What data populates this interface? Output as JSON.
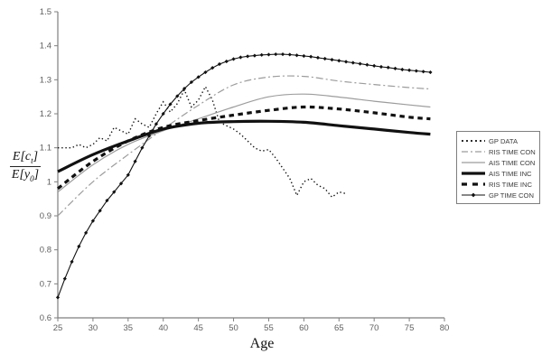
{
  "chart_data": {
    "type": "line",
    "title": "",
    "xlabel": "Age",
    "ylabel": {
      "num_main": "E[c",
      "num_sub": "t",
      "num_close": "]",
      "den_main": "E[y",
      "den_sub": "0",
      "den_close": "]"
    },
    "xlim": [
      25,
      80
    ],
    "ylim": [
      0.6,
      1.5
    ],
    "grid": false,
    "legend_position": "right-middle",
    "xticks": [
      "25",
      "30",
      "35",
      "40",
      "45",
      "50",
      "55",
      "60",
      "65",
      "70",
      "75",
      "80"
    ],
    "yticks": [
      "0.6",
      "0.7",
      "0.8",
      "0.9",
      "1",
      "1.1",
      "1.2",
      "1.3",
      "1.4",
      "1.5"
    ],
    "axis_color": "#7f7f7f",
    "tick_label_color": "#5f5f5f",
    "gray_series_color": "#9c9c9c",
    "black_series_color": "#111111",
    "series": [
      {
        "name": "GP DATA",
        "style": "dotted",
        "color": "#111111",
        "width": 1.4,
        "smooth": false,
        "marker": "none",
        "x": [
          25,
          26,
          27,
          28,
          29,
          30,
          31,
          32,
          33,
          34,
          35,
          36,
          37,
          38,
          39,
          40,
          41,
          42,
          43,
          44,
          45,
          46,
          47,
          48,
          49,
          50,
          51,
          52,
          53,
          54,
          55,
          56,
          57,
          58,
          59,
          60,
          61,
          62,
          63,
          64,
          65,
          66
        ],
        "y": [
          1.1,
          1.1,
          1.1,
          1.11,
          1.1,
          1.11,
          1.13,
          1.12,
          1.16,
          1.15,
          1.14,
          1.185,
          1.17,
          1.16,
          1.2,
          1.235,
          1.205,
          1.23,
          1.27,
          1.22,
          1.24,
          1.28,
          1.24,
          1.175,
          1.165,
          1.155,
          1.14,
          1.12,
          1.1,
          1.09,
          1.095,
          1.07,
          1.04,
          1.01,
          0.96,
          1.0,
          1.01,
          0.99,
          0.98,
          0.955,
          0.97,
          0.965
        ]
      },
      {
        "name": "RIS TIME CON",
        "style": "dashdot",
        "color": "#9c9c9c",
        "width": 1.2,
        "smooth": true,
        "marker": "none",
        "x": [
          25,
          30,
          35,
          40,
          45,
          50,
          55,
          60,
          65,
          70,
          75,
          78
        ],
        "y": [
          0.9,
          1.0,
          1.08,
          1.155,
          1.225,
          1.285,
          1.308,
          1.31,
          1.296,
          1.286,
          1.277,
          1.273
        ]
      },
      {
        "name": "AIS TIME CON",
        "style": "solid",
        "color": "#9c9c9c",
        "width": 1.2,
        "smooth": true,
        "marker": "none",
        "x": [
          25,
          30,
          35,
          40,
          45,
          50,
          55,
          60,
          65,
          70,
          75,
          78
        ],
        "y": [
          0.97,
          1.05,
          1.11,
          1.15,
          1.185,
          1.22,
          1.25,
          1.258,
          1.249,
          1.237,
          1.226,
          1.22
        ]
      },
      {
        "name": "AIS TIME INC",
        "style": "solid",
        "color": "#111111",
        "width": 3.2,
        "smooth": true,
        "marker": "none",
        "x": [
          25,
          30,
          35,
          40,
          45,
          50,
          55,
          60,
          65,
          70,
          75,
          78
        ],
        "y": [
          1.03,
          1.08,
          1.12,
          1.155,
          1.172,
          1.177,
          1.178,
          1.175,
          1.165,
          1.155,
          1.145,
          1.14
        ]
      },
      {
        "name": "RIS TIME INC",
        "style": "dashed",
        "color": "#111111",
        "width": 3.2,
        "smooth": true,
        "marker": "none",
        "x": [
          25,
          30,
          35,
          40,
          45,
          50,
          55,
          60,
          65,
          70,
          75,
          78
        ],
        "y": [
          0.98,
          1.06,
          1.12,
          1.16,
          1.18,
          1.196,
          1.21,
          1.22,
          1.214,
          1.203,
          1.19,
          1.185
        ]
      },
      {
        "name": "GP TIME CON",
        "style": "solid",
        "color": "#111111",
        "width": 1.1,
        "smooth": false,
        "marker": "diamond",
        "x": [
          25,
          26,
          27,
          28,
          29,
          30,
          31,
          32,
          33,
          34,
          35,
          36,
          37,
          38,
          39,
          40,
          41,
          42,
          43,
          44,
          45,
          46,
          47,
          48,
          49,
          50,
          51,
          52,
          53,
          54,
          55,
          56,
          57,
          58,
          59,
          60,
          61,
          62,
          63,
          64,
          65,
          66,
          67,
          68,
          69,
          70,
          71,
          72,
          73,
          74,
          75,
          76,
          77,
          78
        ],
        "y": [
          0.66,
          0.715,
          0.765,
          0.81,
          0.85,
          0.885,
          0.915,
          0.945,
          0.97,
          0.995,
          1.02,
          1.06,
          1.1,
          1.135,
          1.17,
          1.2,
          1.228,
          1.252,
          1.274,
          1.293,
          1.308,
          1.322,
          1.335,
          1.346,
          1.354,
          1.361,
          1.366,
          1.369,
          1.371,
          1.373,
          1.374,
          1.375,
          1.375,
          1.374,
          1.372,
          1.37,
          1.368,
          1.365,
          1.362,
          1.359,
          1.356,
          1.353,
          1.35,
          1.347,
          1.344,
          1.341,
          1.338,
          1.336,
          1.333,
          1.33,
          1.328,
          1.326,
          1.324,
          1.322
        ]
      }
    ]
  }
}
